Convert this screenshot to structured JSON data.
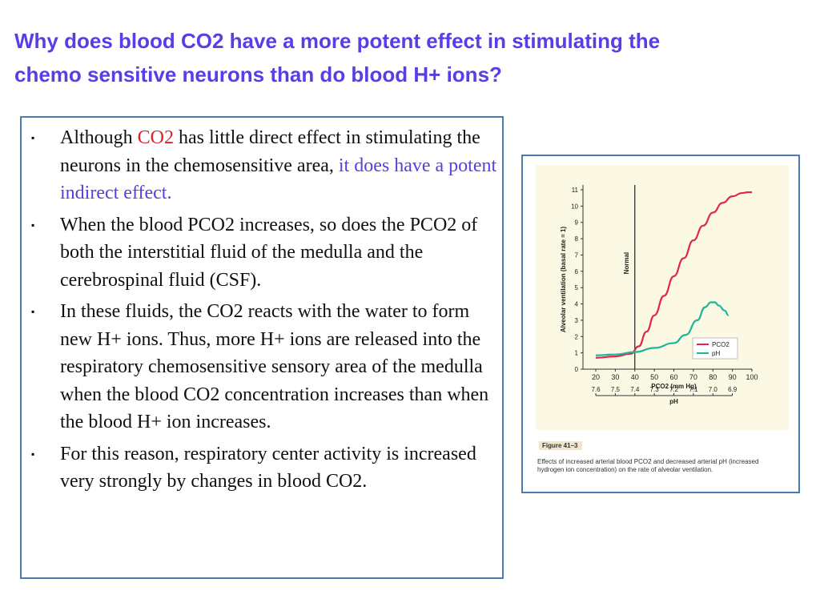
{
  "title": {
    "line1": "Why does blood CO2 have a more potent effect in stimulating the",
    "line2": "chemo sensitive neurons than do blood H+ ions?"
  },
  "bullets": [
    {
      "parts": [
        "Although ",
        "CO2",
        " has little direct effect in stimulating the neurons in the chemosensitive area, ",
        "it does have a potent indirect effect."
      ]
    },
    {
      "text": "When the blood PCO2 increases, so does the PCO2 of both the interstitial fluid of the medulla and the cerebrospinal fluid (CSF)."
    },
    {
      "text": "In these fluids, the CO2 reacts with the water to form new H+ ions. Thus, more H+ ions are released into the respiratory chemosensitive sensory area of the medulla when the blood CO2 concentration increases than when the blood H+ ion  increases."
    },
    {
      "text": "For this reason, respiratory center activity is increased very strongly by changes in blood CO2."
    }
  ],
  "bullet_symbol": "▪",
  "colors": {
    "title": "#5b3ce6",
    "highlight_red": "#e1202a",
    "highlight_blue": "#5540e0",
    "pco2_line": "#e0264a",
    "ph_line": "#1fb59a"
  },
  "figure": {
    "label": "Figure 41–3",
    "caption": "Effects of increased arterial blood PCO2 and decreased arterial pH (increased hydrogen ion concentration) on the rate of alveolar ventilation."
  },
  "chart_data": {
    "type": "line",
    "title": "",
    "ylabel": "Alveolar ventilation (basal rate = 1)",
    "xlabel": "PCO2 (mm Hg)",
    "x2label": "pH",
    "ylim": [
      0,
      11
    ],
    "xlim": [
      20,
      100
    ],
    "yticks": [
      "0",
      "1",
      "2",
      "3",
      "4",
      "5",
      "6",
      "7",
      "8",
      "9",
      "10",
      "11"
    ],
    "xticks": [
      "20",
      "30",
      "40",
      "50",
      "60",
      "70",
      "80",
      "90",
      "100"
    ],
    "x2ticks": [
      "7.6",
      "7.5",
      "7.4",
      "7.3",
      "7.2",
      "7.1",
      "7.0",
      "6.9"
    ],
    "normal_line": {
      "x": 40,
      "label": "Normal"
    },
    "series": [
      {
        "name": "PCO2",
        "x": [
          20,
          30,
          38,
          42,
          46,
          50,
          55,
          60,
          65,
          70,
          75,
          80,
          85,
          90,
          95,
          98,
          100
        ],
        "values": [
          0.7,
          0.78,
          0.95,
          1.4,
          2.3,
          3.3,
          4.5,
          5.7,
          6.8,
          7.9,
          8.8,
          9.6,
          10.2,
          10.6,
          10.8,
          10.85,
          10.85
        ]
      },
      {
        "name": "pH",
        "x": [
          20,
          30,
          40,
          50,
          60,
          66,
          72,
          76,
          79,
          81,
          83,
          86,
          88
        ],
        "values": [
          0.85,
          0.9,
          1.05,
          1.3,
          1.6,
          2.1,
          3.0,
          3.8,
          4.1,
          4.1,
          3.9,
          3.6,
          3.3
        ]
      }
    ],
    "legend": [
      {
        "label": "PCO2",
        "color": "#e0264a"
      },
      {
        "label": "pH",
        "color": "#1fb59a"
      }
    ],
    "legend_position": "lower-right"
  }
}
